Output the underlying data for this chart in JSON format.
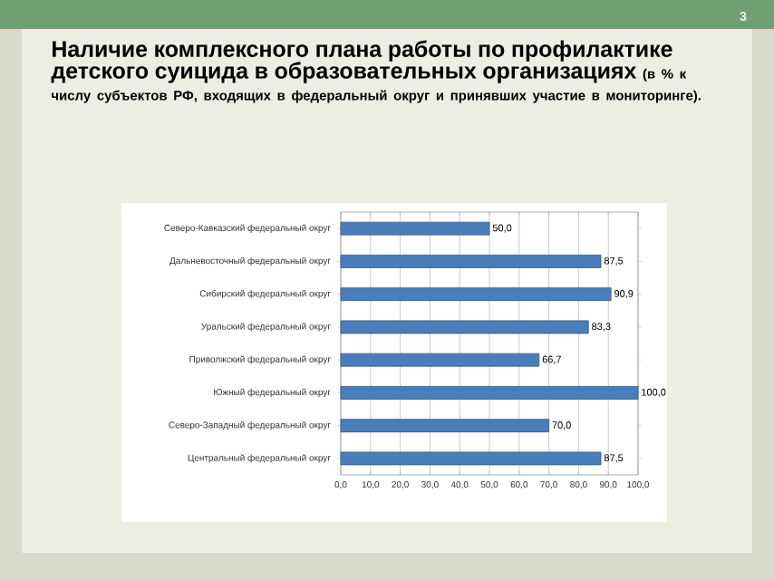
{
  "chart_data": {
    "type": "bar",
    "orientation": "horizontal",
    "title": "Наличие комплексного плана работы по профилактике детского суицида в образовательных организациях",
    "subtitle": "(в % к числу субъектов РФ, входящих в федеральный округ и принявших участие в мониторинге).",
    "annotations": [
      "3"
    ],
    "categories": [
      "Северо-Кавказский федеральный округ",
      "Дальневосточный федеральный округ",
      "Сибирский федеральный округ",
      "Уральский федеральный округ",
      "Приволжский федеральный округ",
      "Южный федеральный округ",
      "Северо-Западный федеральный округ",
      "Центральный федеральный округ"
    ],
    "values": [
      50.0,
      87.5,
      90.9,
      83.3,
      66.7,
      100.0,
      70.0,
      87.5
    ],
    "value_labels": [
      "50,0",
      "87,5",
      "90,9",
      "83,3",
      "66,7",
      "100,0",
      "70,0",
      "87,5"
    ],
    "color": "#4a7ebb",
    "xlim": [
      0,
      100
    ],
    "xticks": [
      {
        "value": 0,
        "label": "0,0"
      },
      {
        "value": 10,
        "label": "10,0"
      },
      {
        "value": 20,
        "label": "20,0"
      },
      {
        "value": 30,
        "label": "30,0"
      },
      {
        "value": 40,
        "label": "40,0"
      },
      {
        "value": 50,
        "label": "50,0"
      },
      {
        "value": 60,
        "label": "60,0"
      },
      {
        "value": 70,
        "label": "70,0"
      },
      {
        "value": 80,
        "label": "80,0"
      },
      {
        "value": 90,
        "label": "90,0"
      },
      {
        "value": 100,
        "label": "100,0"
      }
    ],
    "grid": "x"
  }
}
